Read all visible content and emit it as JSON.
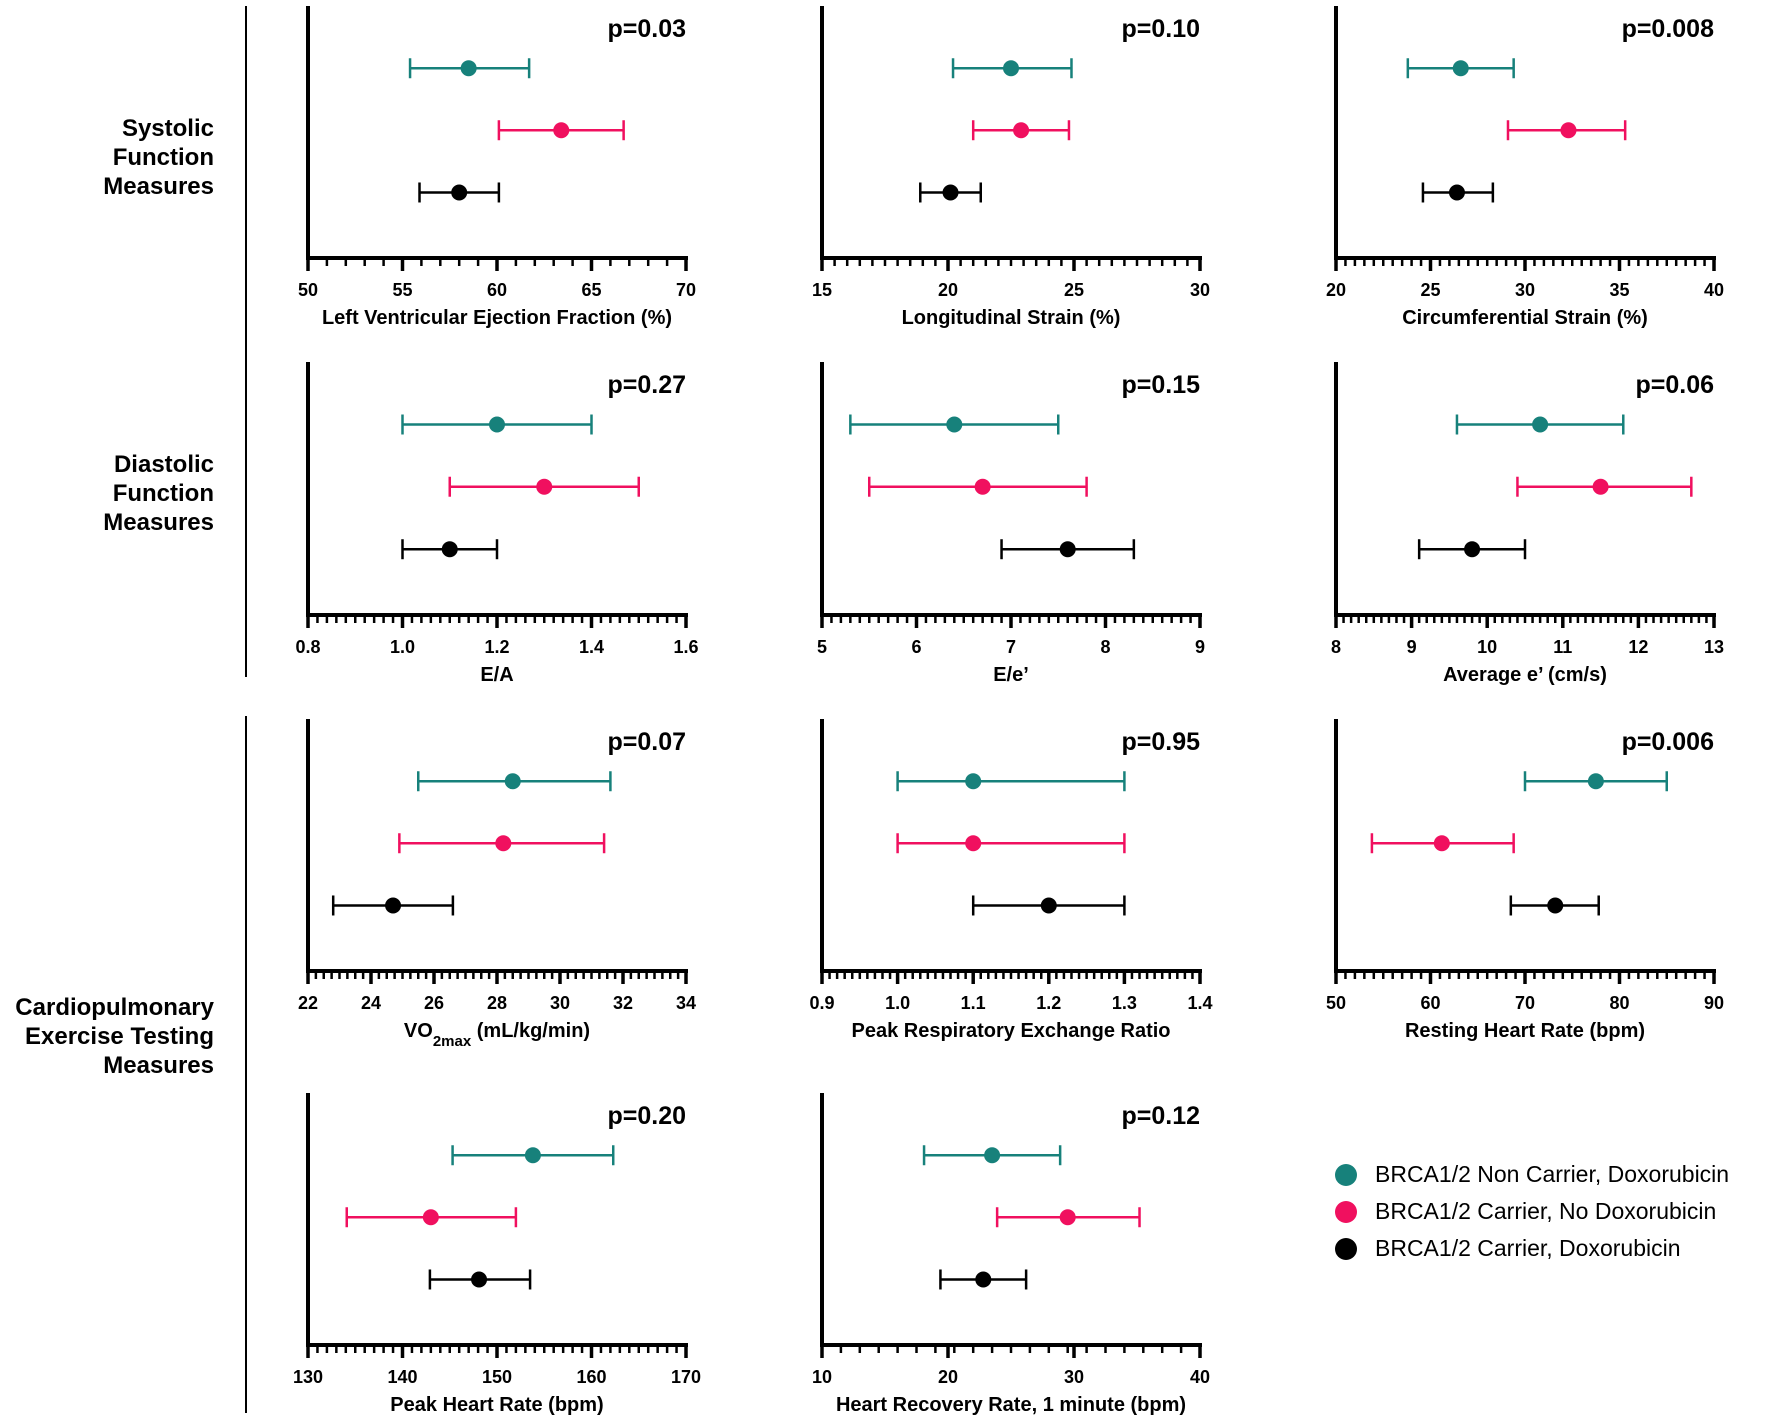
{
  "colors": {
    "non_carrier_dox": "#17817b",
    "carrier_no_dox": "#f0105f",
    "carrier_dox": "#000000"
  },
  "group_labels": [
    {
      "lines": [
        "Systolic",
        "Function",
        "Measures"
      ]
    },
    {
      "lines": [
        "Diastolic",
        "Function",
        "Measures"
      ]
    },
    {
      "lines": [
        "Cardiopulmonary",
        "Exercise Testing",
        "Measures"
      ]
    }
  ],
  "legend": [
    {
      "label": "BRCA1/2 Non Carrier, Doxorubicin",
      "series": "non_carrier_dox"
    },
    {
      "label": "BRCA1/2 Carrier, No Doxorubicin",
      "series": "carrier_no_dox"
    },
    {
      "label": "BRCA1/2 Carrier, Doxorubicin",
      "series": "carrier_dox"
    }
  ],
  "chart_data": [
    {
      "type": "scatter",
      "title": "p=0.03",
      "xlabel": "Left Ventricular Ejection Fraction (%)",
      "xlim": [
        50,
        70
      ],
      "ticks": [
        "50",
        "55",
        "60",
        "65",
        "70"
      ],
      "minor_step": 1,
      "series": [
        {
          "name": "non_carrier_dox",
          "mean": 58.5,
          "low": 55.4,
          "high": 61.7
        },
        {
          "name": "carrier_no_dox",
          "mean": 63.4,
          "low": 60.1,
          "high": 66.7
        },
        {
          "name": "carrier_dox",
          "mean": 58.0,
          "low": 55.9,
          "high": 60.1
        }
      ]
    },
    {
      "type": "scatter",
      "title": "p=0.10",
      "xlabel": "Longitudinal Strain (%)",
      "xlim": [
        15,
        30
      ],
      "ticks": [
        "15",
        "20",
        "25",
        "30"
      ],
      "minor_step": 0.5,
      "series": [
        {
          "name": "non_carrier_dox",
          "mean": 22.5,
          "low": 20.2,
          "high": 24.9
        },
        {
          "name": "carrier_no_dox",
          "mean": 22.9,
          "low": 21.0,
          "high": 24.8
        },
        {
          "name": "carrier_dox",
          "mean": 20.1,
          "low": 18.9,
          "high": 21.3
        }
      ]
    },
    {
      "type": "scatter",
      "title": "p=0.008",
      "xlabel": "Circumferential Strain (%)",
      "xlim": [
        20,
        40
      ],
      "ticks": [
        "20",
        "25",
        "30",
        "35",
        "40"
      ],
      "minor_step": 0.5,
      "series": [
        {
          "name": "non_carrier_dox",
          "mean": 26.6,
          "low": 23.8,
          "high": 29.4
        },
        {
          "name": "carrier_no_dox",
          "mean": 32.3,
          "low": 29.1,
          "high": 35.3
        },
        {
          "name": "carrier_dox",
          "mean": 26.4,
          "low": 24.6,
          "high": 28.3
        }
      ]
    },
    {
      "type": "scatter",
      "title": "p=0.27",
      "xlabel": "E/A",
      "xlim": [
        0.8,
        1.6
      ],
      "ticks": [
        "0.8",
        "1.0",
        "1.2",
        "1.4",
        "1.6"
      ],
      "minor_step": 0.02,
      "series": [
        {
          "name": "non_carrier_dox",
          "mean": 1.2,
          "low": 1.0,
          "high": 1.4
        },
        {
          "name": "carrier_no_dox",
          "mean": 1.3,
          "low": 1.1,
          "high": 1.5
        },
        {
          "name": "carrier_dox",
          "mean": 1.1,
          "low": 1.0,
          "high": 1.2
        }
      ]
    },
    {
      "type": "scatter",
      "title": "p=0.15",
      "xlabel": "E/e’",
      "xlim": [
        5,
        9
      ],
      "ticks": [
        "5",
        "6",
        "7",
        "8",
        "9"
      ],
      "minor_step": 0.1,
      "series": [
        {
          "name": "non_carrier_dox",
          "mean": 6.4,
          "low": 5.3,
          "high": 7.5
        },
        {
          "name": "carrier_no_dox",
          "mean": 6.7,
          "low": 5.5,
          "high": 7.8
        },
        {
          "name": "carrier_dox",
          "mean": 7.6,
          "low": 6.9,
          "high": 8.3
        }
      ]
    },
    {
      "type": "scatter",
      "title": "p=0.06",
      "xlabel": "Average e’ (cm/s)",
      "xlim": [
        8,
        13
      ],
      "ticks": [
        "8",
        "9",
        "10",
        "11",
        "12",
        "13"
      ],
      "minor_step": 0.1,
      "series": [
        {
          "name": "non_carrier_dox",
          "mean": 10.7,
          "low": 9.6,
          "high": 11.8
        },
        {
          "name": "carrier_no_dox",
          "mean": 11.5,
          "low": 10.4,
          "high": 12.7
        },
        {
          "name": "carrier_dox",
          "mean": 9.8,
          "low": 9.1,
          "high": 10.5
        }
      ]
    },
    {
      "type": "scatter",
      "title": "p=0.07",
      "xlabel": "VO",
      "xlabel_sub": "2max",
      "xlabel_rest": " (mL/kg/min)",
      "xlim": [
        22,
        34
      ],
      "ticks": [
        "22",
        "24",
        "26",
        "28",
        "30",
        "32",
        "34"
      ],
      "minor_step": 0.25,
      "series": [
        {
          "name": "non_carrier_dox",
          "mean": 28.5,
          "low": 25.5,
          "high": 31.6
        },
        {
          "name": "carrier_no_dox",
          "mean": 28.2,
          "low": 24.9,
          "high": 31.4
        },
        {
          "name": "carrier_dox",
          "mean": 24.7,
          "low": 22.8,
          "high": 26.6
        }
      ]
    },
    {
      "type": "scatter",
      "title": "p=0.95",
      "xlabel": "Peak Respiratory Exchange Ratio",
      "xlim": [
        0.9,
        1.4
      ],
      "ticks": [
        "0.9",
        "1.0",
        "1.1",
        "1.2",
        "1.3",
        "1.4"
      ],
      "minor_step": 0.01,
      "series": [
        {
          "name": "non_carrier_dox",
          "mean": 1.1,
          "low": 1.0,
          "high": 1.3
        },
        {
          "name": "carrier_no_dox",
          "mean": 1.1,
          "low": 1.0,
          "high": 1.3
        },
        {
          "name": "carrier_dox",
          "mean": 1.2,
          "low": 1.1,
          "high": 1.3
        }
      ]
    },
    {
      "type": "scatter",
      "title": "p=0.006",
      "xlabel": "Resting Heart Rate (bpm)",
      "xlim": [
        50,
        90
      ],
      "ticks": [
        "50",
        "60",
        "70",
        "80",
        "90"
      ],
      "minor_step": 1,
      "series": [
        {
          "name": "non_carrier_dox",
          "mean": 77.5,
          "low": 70.0,
          "high": 85.0
        },
        {
          "name": "carrier_no_dox",
          "mean": 61.2,
          "low": 53.8,
          "high": 68.8
        },
        {
          "name": "carrier_dox",
          "mean": 73.2,
          "low": 68.5,
          "high": 77.8
        }
      ]
    },
    {
      "type": "scatter",
      "title": "p=0.20",
      "xlabel": "Peak Heart Rate (bpm)",
      "xlim": [
        130,
        170
      ],
      "ticks": [
        "130",
        "140",
        "150",
        "160",
        "170"
      ],
      "minor_step": 1,
      "series": [
        {
          "name": "non_carrier_dox",
          "mean": 153.8,
          "low": 145.3,
          "high": 162.3
        },
        {
          "name": "carrier_no_dox",
          "mean": 143.0,
          "low": 134.1,
          "high": 152.0
        },
        {
          "name": "carrier_dox",
          "mean": 148.1,
          "low": 142.9,
          "high": 153.5
        }
      ]
    },
    {
      "type": "scatter",
      "title": "p=0.12",
      "xlabel": "Heart Recovery Rate, 1 minute (bpm)",
      "xlim": [
        10,
        40
      ],
      "ticks": [
        "10",
        "20",
        "30",
        "40"
      ],
      "minor_step": 1.5,
      "series": [
        {
          "name": "non_carrier_dox",
          "mean": 23.5,
          "low": 18.1,
          "high": 28.9
        },
        {
          "name": "carrier_no_dox",
          "mean": 29.5,
          "low": 23.9,
          "high": 35.2
        },
        {
          "name": "carrier_dox",
          "mean": 22.8,
          "low": 19.4,
          "high": 26.2
        }
      ]
    }
  ]
}
